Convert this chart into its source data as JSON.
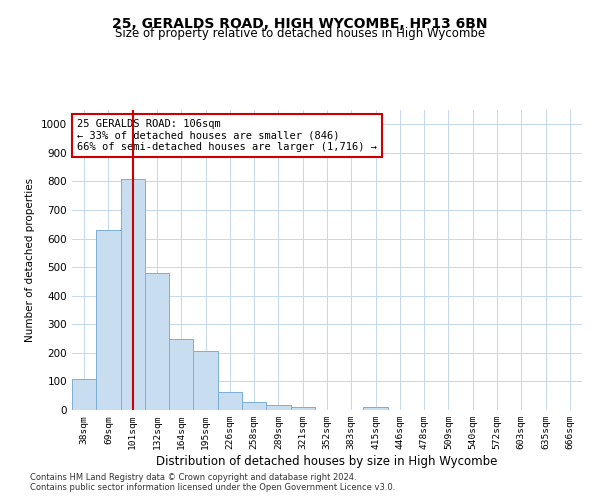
{
  "title": "25, GERALDS ROAD, HIGH WYCOMBE, HP13 6BN",
  "subtitle": "Size of property relative to detached houses in High Wycombe",
  "xlabel": "Distribution of detached houses by size in High Wycombe",
  "ylabel": "Number of detached properties",
  "categories": [
    "38sqm",
    "69sqm",
    "101sqm",
    "132sqm",
    "164sqm",
    "195sqm",
    "226sqm",
    "258sqm",
    "289sqm",
    "321sqm",
    "352sqm",
    "383sqm",
    "415sqm",
    "446sqm",
    "478sqm",
    "509sqm",
    "540sqm",
    "572sqm",
    "603sqm",
    "635sqm",
    "666sqm"
  ],
  "values": [
    110,
    630,
    810,
    480,
    250,
    207,
    63,
    28,
    18,
    10,
    0,
    0,
    10,
    0,
    0,
    0,
    0,
    0,
    0,
    0,
    0
  ],
  "bar_color": "#c9ddf0",
  "bar_edge_color": "#7bafd4",
  "vline_x_index": 2,
  "vline_color": "#cc0000",
  "annotation_text": "25 GERALDS ROAD: 106sqm\n← 33% of detached houses are smaller (846)\n66% of semi-detached houses are larger (1,716) →",
  "annotation_box_color": "#ffffff",
  "annotation_box_edge": "#cc0000",
  "ylim": [
    0,
    1050
  ],
  "yticks": [
    0,
    100,
    200,
    300,
    400,
    500,
    600,
    700,
    800,
    900,
    1000
  ],
  "background_color": "#ffffff",
  "grid_color": "#c5d8ea",
  "footer1": "Contains HM Land Registry data © Crown copyright and database right 2024.",
  "footer2": "Contains public sector information licensed under the Open Government Licence v3.0."
}
